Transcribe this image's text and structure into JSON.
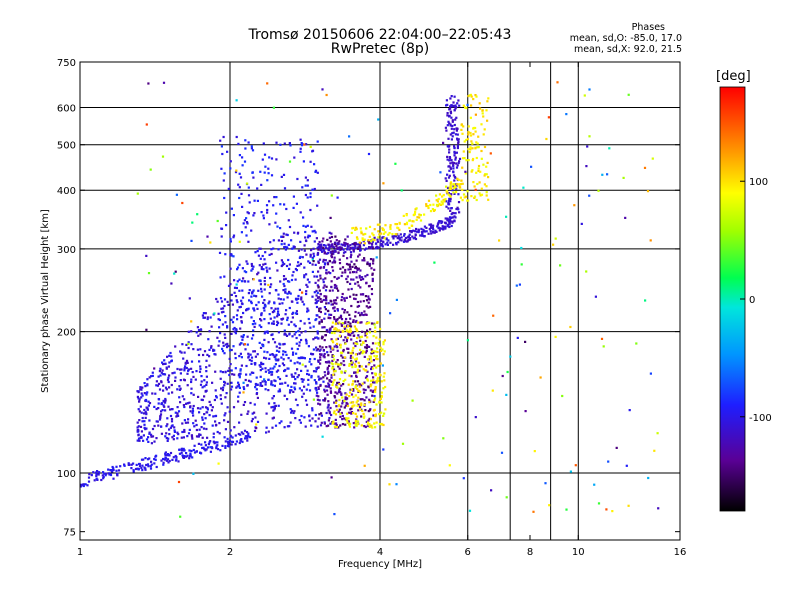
{
  "colors": {
    "grid": "#000000",
    "background": "#ffffff"
  },
  "header": {
    "title": "Tromsø 20150606 22:04:00–22:05:43",
    "subtitle": "RwPretec (8p)"
  },
  "stats": {
    "heading": "Phases",
    "line_o": "mean, sd,O: -85.0, 17.0",
    "line_x": "mean, sd,X:  92.0, 21.5"
  },
  "colorbar": {
    "unit_label": "[deg]",
    "range": [
      -180,
      180
    ],
    "ticks": [
      100,
      0,
      -100
    ],
    "tick_labels": [
      "100",
      "0",
      "-100"
    ],
    "colormap": "rainbow"
  },
  "chart_data": {
    "type": "scatter",
    "xlabel": "Frequency [MHz]",
    "ylabel": "Stationary phase Virtual Height [km]",
    "xscale": "log",
    "yscale": "log",
    "xlim": [
      1,
      16
    ],
    "ylim": [
      72,
      750
    ],
    "x_ticks": [
      1,
      2,
      4,
      6,
      8,
      10,
      16
    ],
    "x_tick_labels": [
      "1",
      "2",
      "4",
      "6",
      "8",
      "10",
      "16"
    ],
    "x_grid": [
      2,
      4,
      6,
      7.3,
      8.8,
      10
    ],
    "y_ticks": [
      75,
      100,
      200,
      300,
      400,
      500,
      600,
      750
    ],
    "y_tick_labels": [
      "75",
      "100",
      "200",
      "300",
      "400",
      "500",
      "600",
      "750"
    ],
    "y_grid": [
      100,
      200,
      300,
      400,
      500,
      600
    ],
    "grid": true,
    "color_by": "phase (deg)",
    "clusters": [
      {
        "name": "low-E trace",
        "x_range": [
          1.0,
          2.2
        ],
        "height_at_x0": 96,
        "height_at_x1": 120,
        "phase": -100,
        "count": 220
      },
      {
        "name": "F1 diffuse cloud",
        "x_range": [
          1.3,
          3.2
        ],
        "y_range": [
          120,
          320
        ],
        "phase": -105,
        "count": 900
      },
      {
        "name": "F region spread",
        "x_range": [
          1.9,
          3.0
        ],
        "y_range": [
          150,
          520
        ],
        "phase": -95,
        "count": 500
      },
      {
        "name": "O-mode F trace",
        "x_range": [
          3.0,
          5.6
        ],
        "y_range": [
          295,
          340
        ],
        "phase": -110,
        "count": 260
      },
      {
        "name": "O-mode cusp",
        "x_range": [
          5.4,
          5.8
        ],
        "y_range": [
          340,
          640
        ],
        "phase": -112,
        "count": 160
      },
      {
        "name": "spread F violet",
        "x_range": [
          3.0,
          3.9
        ],
        "y_range": [
          125,
          320
        ],
        "phase": -135,
        "count": 600
      },
      {
        "name": "X-mode trace",
        "x_range": [
          3.5,
          6.6
        ],
        "y_range": [
          310,
          640
        ],
        "phase": 95,
        "count": 260
      },
      {
        "name": "X-mode lower",
        "x_range": [
          3.2,
          4.1
        ],
        "y_range": [
          125,
          210
        ],
        "phase": 92,
        "count": 280
      },
      {
        "name": "scattered echoes",
        "x_range": [
          1.3,
          14.5
        ],
        "y_range": [
          80,
          680
        ],
        "phase": "mixed",
        "count": 180
      }
    ]
  }
}
